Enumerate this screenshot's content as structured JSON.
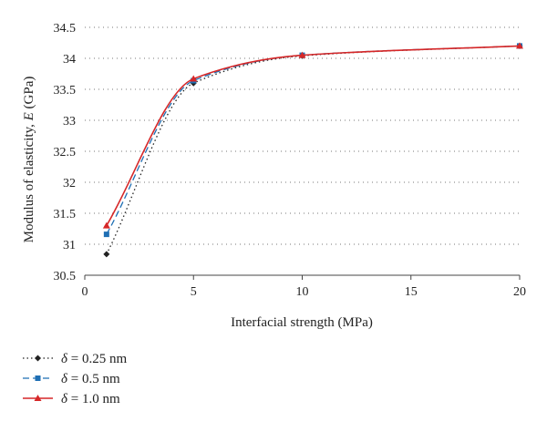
{
  "chart_data": {
    "type": "line",
    "title": "",
    "xlabel": "Interfacial strength (MPa)",
    "ylabel": "Modulus of elasticity, E (GPa)",
    "ylabel_parts": {
      "before": "Modulus of elasticity, ",
      "symbol": "E",
      "after": " (GPa)"
    },
    "xlim": [
      0,
      20
    ],
    "ylim": [
      30.5,
      34.5
    ],
    "xticks": [
      "0",
      "5",
      "10",
      "15",
      "20"
    ],
    "yticks": [
      "30.5",
      "31",
      "31.5",
      "32",
      "32.5",
      "33",
      "33.5",
      "34",
      "34.5"
    ],
    "grid": "horizontal dotted",
    "legend_position": "bottom-left",
    "x": [
      1,
      5,
      10,
      20
    ],
    "series": [
      {
        "name": "δ = 0.25 nm",
        "name_parts": {
          "symbol": "δ",
          "text": " = 0.25 nm"
        },
        "values": [
          30.84,
          33.6,
          34.04,
          34.2
        ],
        "color": "#222222",
        "line_style": "dotted",
        "marker": "diamond"
      },
      {
        "name": "δ = 0.5 nm",
        "name_parts": {
          "symbol": "δ",
          "text": " = 0.5 nm"
        },
        "values": [
          31.16,
          33.64,
          34.05,
          34.2
        ],
        "color": "#1f6fb4",
        "line_style": "dashed",
        "marker": "square"
      },
      {
        "name": "δ = 1.0 nm",
        "name_parts": {
          "symbol": "δ",
          "text": " = 1.0 nm"
        },
        "values": [
          31.3,
          33.67,
          34.05,
          34.2
        ],
        "color": "#d62728",
        "line_style": "solid",
        "marker": "triangle"
      }
    ]
  }
}
